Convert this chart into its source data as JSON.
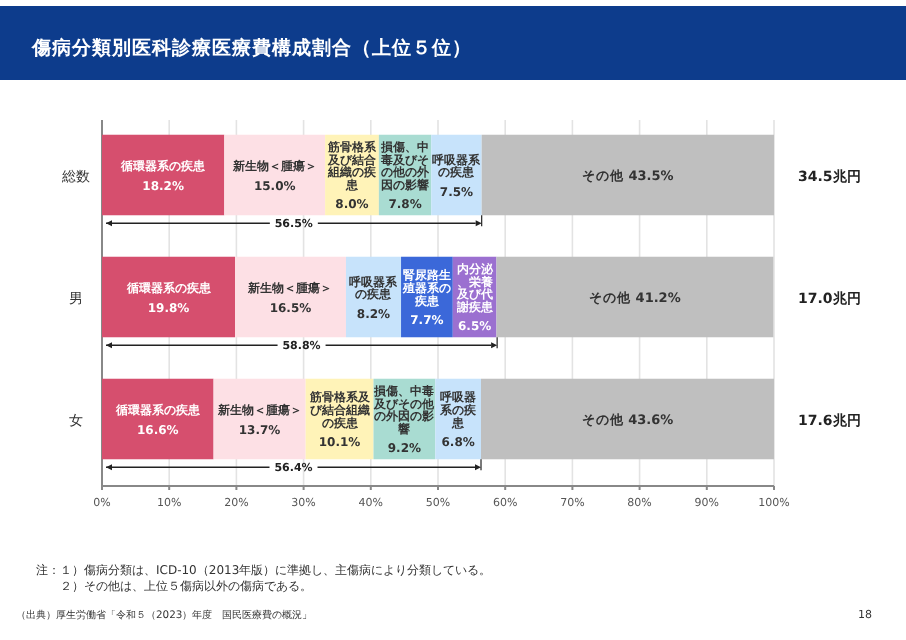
{
  "chart_data": {
    "type": "bar",
    "orientation": "horizontal",
    "stacked": true,
    "title": "傷病分類別医科診療医療費構成割合（上位５位）",
    "categories": [
      "総数",
      "男",
      "女"
    ],
    "series": [
      {
        "name": "循環器系の疾患",
        "color": "#d64f6e",
        "values": [
          18.2,
          19.8,
          16.6
        ],
        "value_labels": [
          "18.2%",
          "19.8%",
          "16.6%"
        ]
      },
      {
        "name": "新生物＜腫瘍＞",
        "color": "#fde0e5",
        "values": [
          15.0,
          16.5,
          13.7
        ],
        "value_labels": [
          "15.0%",
          "16.5%",
          "13.7%"
        ]
      },
      {
        "name": "筋骨格系及び結合組織の疾患",
        "color": "#fff3b8",
        "values": [
          8.0,
          null,
          10.1
        ],
        "value_labels": [
          "8.0%",
          null,
          "10.1%"
        ]
      },
      {
        "name": "損傷、中毒及びその他の外因の影響",
        "color": "#a9dcd2",
        "values": [
          7.8,
          null,
          9.2
        ],
        "value_labels": [
          "7.8%",
          null,
          "9.2%"
        ]
      },
      {
        "name": "呼吸器系の疾患",
        "color": "#c7e3fb",
        "values": [
          7.5,
          8.2,
          6.8
        ],
        "value_labels": [
          "7.5%",
          "8.2%",
          "6.8%"
        ]
      },
      {
        "name": "腎尿路生殖器系の疾患",
        "color": "#3b68d9",
        "values": [
          null,
          7.7,
          null
        ],
        "value_labels": [
          null,
          "7.7%",
          null
        ]
      },
      {
        "name": "内分泌、栄養及び代謝疾患",
        "color": "#9b70d0",
        "values": [
          null,
          6.5,
          null
        ],
        "value_labels": [
          null,
          "6.5%",
          null
        ]
      },
      {
        "name": "その他",
        "color": "#bfbfbf",
        "values": [
          43.5,
          41.2,
          43.6
        ],
        "value_labels": [
          "43.5%",
          "41.2%",
          "43.6%"
        ]
      }
    ],
    "xlim": [
      0,
      100
    ],
    "xticks": [
      {
        "value": 0,
        "label": "0%"
      },
      {
        "value": 10,
        "label": "10%"
      },
      {
        "value": 20,
        "label": "20%"
      },
      {
        "value": 30,
        "label": "30%"
      },
      {
        "value": 40,
        "label": "40%"
      },
      {
        "value": 50,
        "label": "50%"
      },
      {
        "value": 60,
        "label": "60%"
      },
      {
        "value": 70,
        "label": "70%"
      },
      {
        "value": 80,
        "label": "80%"
      },
      {
        "value": 90,
        "label": "90%"
      },
      {
        "value": 100,
        "label": "100%"
      }
    ],
    "grid": "x",
    "annotations": [
      {
        "text": "56.5%",
        "x": 56.5
      },
      {
        "text": "58.8%",
        "x": 58.8
      },
      {
        "text": "56.4%",
        "x": 56.4
      },
      "34.5兆円",
      "17.0兆円",
      "17.6兆円",
      "注：１）傷病分類は、ICD-10（2013年版）に準拠し、主傷病により分類している。",
      "２）その他は、上位５傷病以外の傷病である。",
      "（出典）厚生労働省「令和５（2023）年度　国民医療費の概況」",
      "18"
    ]
  }
}
